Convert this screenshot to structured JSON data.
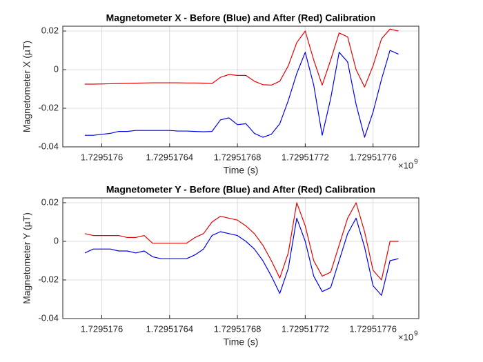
{
  "chart_data": [
    {
      "type": "line",
      "title": "Magnetometer X - Before (Blue) and After (Red) Calibration",
      "x_label": "Time (s)",
      "y_label": "Magnetometer X (µT)",
      "x_multiplier": {
        "base": "×10",
        "exponent": "9"
      },
      "xlim": [
        1.729517577,
        1.729517787
      ],
      "xticks": [
        1.7295176,
        1.72951764,
        1.72951768,
        1.72951772,
        1.72951776
      ],
      "ylim": [
        -0.04,
        0.0225
      ],
      "yticks": [
        0.02,
        0,
        -0.02,
        -0.04
      ],
      "grid": true,
      "x": [
        1.72951759,
        1.729517595,
        1.7295176,
        1.729517605,
        1.72951761,
        1.729517615,
        1.72951762,
        1.729517625,
        1.72951763,
        1.729517635,
        1.72951764,
        1.729517645,
        1.72951765,
        1.729517655,
        1.72951766,
        1.729517665,
        1.72951767,
        1.729517675,
        1.72951768,
        1.729517685,
        1.72951769,
        1.729517695,
        1.7295177,
        1.729517705,
        1.72951771,
        1.729517715,
        1.72951772,
        1.729517725,
        1.72951773,
        1.729517735,
        1.72951774,
        1.729517745,
        1.72951775,
        1.729517755,
        1.72951776,
        1.729517765,
        1.72951777,
        1.729517775
      ],
      "series": [
        {
          "name": "Before",
          "color": "#0000ee",
          "values": [
            -0.034,
            -0.034,
            -0.0335,
            -0.033,
            -0.032,
            -0.032,
            -0.0315,
            -0.0315,
            -0.0315,
            -0.0315,
            -0.0315,
            -0.0318,
            -0.0318,
            -0.032,
            -0.0322,
            -0.032,
            -0.026,
            -0.025,
            -0.0285,
            -0.028,
            -0.033,
            -0.035,
            -0.0335,
            -0.028,
            -0.016,
            -0.002,
            0.009,
            -0.008,
            -0.034,
            -0.015,
            0.009,
            0.004,
            -0.018,
            -0.035,
            -0.022,
            -0.005,
            0.01,
            0.008
          ]
        },
        {
          "name": "After",
          "color": "#e60000",
          "values": [
            -0.0075,
            -0.0075,
            -0.0074,
            -0.0073,
            -0.0072,
            -0.0071,
            -0.007,
            -0.0069,
            -0.0068,
            -0.0068,
            -0.0068,
            -0.0068,
            -0.0069,
            -0.0069,
            -0.007,
            -0.0072,
            -0.004,
            -0.0025,
            -0.003,
            -0.003,
            -0.006,
            -0.0078,
            -0.008,
            -0.006,
            0.002,
            0.014,
            0.02,
            0.005,
            -0.008,
            0.005,
            0.019,
            0.017,
            0,
            -0.009,
            0.002,
            0.016,
            0.021,
            0.02
          ]
        }
      ]
    },
    {
      "type": "line",
      "title": "Magnetometer Y - Before (Blue) and After (Red) Calibration",
      "x_label": "Time (s)",
      "y_label": "Magnetometer Y (µT)",
      "x_multiplier": {
        "base": "×10",
        "exponent": "9"
      },
      "xlim": [
        1.729517577,
        1.729517787
      ],
      "xticks": [
        1.7295176,
        1.72951764,
        1.72951768,
        1.72951772,
        1.72951776
      ],
      "ylim": [
        -0.04,
        0.0225
      ],
      "yticks": [
        0.02,
        0,
        -0.02,
        -0.04
      ],
      "grid": true,
      "x": [
        1.72951759,
        1.729517595,
        1.7295176,
        1.729517605,
        1.72951761,
        1.729517615,
        1.72951762,
        1.729517625,
        1.72951763,
        1.729517635,
        1.72951764,
        1.729517645,
        1.72951765,
        1.729517655,
        1.72951766,
        1.729517665,
        1.72951767,
        1.729517675,
        1.72951768,
        1.729517685,
        1.72951769,
        1.729517695,
        1.7295177,
        1.729517705,
        1.72951771,
        1.729517715,
        1.72951772,
        1.729517725,
        1.72951773,
        1.729517735,
        1.72951774,
        1.729517745,
        1.72951775,
        1.729517755,
        1.72951776,
        1.729517765,
        1.72951777,
        1.729517775
      ],
      "series": [
        {
          "name": "Before",
          "color": "#0000ee",
          "values": [
            -0.006,
            -0.004,
            -0.004,
            -0.004,
            -0.005,
            -0.005,
            -0.006,
            -0.005,
            -0.008,
            -0.009,
            -0.009,
            -0.009,
            -0.009,
            -0.007,
            -0.004,
            0.003,
            0.005,
            0.004,
            0.003,
            0,
            -0.004,
            -0.01,
            -0.018,
            -0.027,
            -0.014,
            0.012,
            0,
            -0.018,
            -0.026,
            -0.024,
            -0.01,
            0.004,
            0.012,
            -0.003,
            -0.023,
            -0.028,
            -0.01,
            -0.009
          ]
        },
        {
          "name": "After",
          "color": "#e60000",
          "values": [
            0.004,
            0.003,
            0.003,
            0.003,
            0.003,
            0.002,
            0.002,
            0.003,
            -0.001,
            -0.001,
            -0.001,
            -0.001,
            -0.001,
            0.002,
            0.004,
            0.01,
            0.013,
            0.012,
            0.011,
            0.008,
            0.004,
            -0.002,
            -0.01,
            -0.019,
            -0.006,
            0.02,
            0.008,
            -0.01,
            -0.018,
            -0.016,
            -0.002,
            0.012,
            0.02,
            0.005,
            -0.015,
            -0.02,
            0,
            0
          ]
        }
      ]
    }
  ]
}
